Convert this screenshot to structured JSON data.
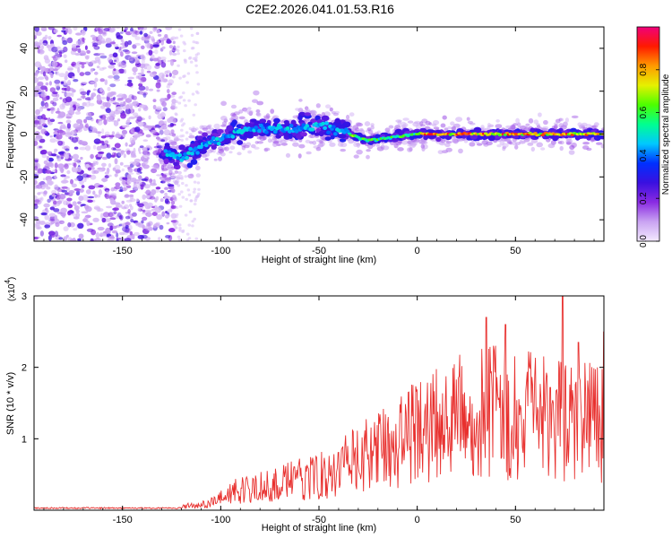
{
  "title": "C2E2.2026.041.01.53.R16",
  "colors": {
    "snr_line": "#e8302e",
    "colormap": [
      "#f4eaff",
      "#c9a3f2",
      "#8a2be2",
      "#3a10e0",
      "#0030ff",
      "#00c8ff",
      "#00ff90",
      "#4cff00",
      "#e6f000",
      "#ff9a00",
      "#ff1a00",
      "#f0007a"
    ]
  },
  "chart_data": [
    {
      "type": "heatmap",
      "name": "spectrogram",
      "xlabel": "Height of straight line (km)",
      "ylabel": "Frequency (Hz)",
      "xlim": [
        -195,
        95
      ],
      "ylim": [
        -50,
        50
      ],
      "x_ticks": [
        -150,
        -100,
        -50,
        0,
        50
      ],
      "x_tick_labels": [
        "-150",
        "-100",
        "-50",
        "0",
        "50"
      ],
      "y_ticks": [
        -40,
        -20,
        0,
        20,
        40
      ],
      "y_tick_labels": [
        "-40",
        "-20",
        "0",
        "20",
        "40"
      ],
      "colorbar": {
        "label": "Normalized spectral amplitude",
        "range": [
          0,
          1
        ],
        "ticks": [
          0.0,
          0.2,
          0.4,
          0.6,
          0.8
        ],
        "tick_labels": [
          "0.0",
          "0.2",
          "0.4",
          "0.6",
          "0.8"
        ]
      },
      "track": [
        {
          "x": -130,
          "y": -8
        },
        {
          "x": -122,
          "y": -11
        },
        {
          "x": -115,
          "y": -9
        },
        {
          "x": -108,
          "y": -4
        },
        {
          "x": -100,
          "y": -2
        },
        {
          "x": -92,
          "y": 1
        },
        {
          "x": -84,
          "y": 2
        },
        {
          "x": -76,
          "y": 3
        },
        {
          "x": -68,
          "y": 2
        },
        {
          "x": -60,
          "y": 3
        },
        {
          "x": -52,
          "y": 4
        },
        {
          "x": -44,
          "y": 3
        },
        {
          "x": -36,
          "y": 1
        },
        {
          "x": -30,
          "y": -2
        },
        {
          "x": -24,
          "y": -3
        },
        {
          "x": -18,
          "y": -2
        },
        {
          "x": -10,
          "y": -1
        },
        {
          "x": 0,
          "y": 0
        },
        {
          "x": 20,
          "y": 0
        },
        {
          "x": 50,
          "y": 0
        },
        {
          "x": 95,
          "y": 0
        }
      ]
    },
    {
      "type": "line",
      "name": "snr",
      "xlabel": "Height of straight line (km)",
      "ylabel": "SNR (10 * v/v)",
      "y_multiplier": "(x10",
      "y_multiplier_exp": "4",
      "y_multiplier_close": ")",
      "xlim": [
        -195,
        95
      ],
      "ylim": [
        0,
        3
      ],
      "x_ticks": [
        -150,
        -100,
        -50,
        0,
        50
      ],
      "x_tick_labels": [
        "-150",
        "-100",
        "-50",
        "0",
        "50"
      ],
      "y_ticks": [
        1,
        2,
        3
      ],
      "y_tick_labels": [
        "1",
        "2",
        "3"
      ],
      "envelope": [
        {
          "x": -195,
          "y": 0.04
        },
        {
          "x": -150,
          "y": 0.04
        },
        {
          "x": -120,
          "y": 0.06
        },
        {
          "x": -105,
          "y": 0.12
        },
        {
          "x": -90,
          "y": 0.35
        },
        {
          "x": -70,
          "y": 0.45
        },
        {
          "x": -55,
          "y": 0.55
        },
        {
          "x": -40,
          "y": 0.7
        },
        {
          "x": -30,
          "y": 0.85
        },
        {
          "x": -20,
          "y": 1.0
        },
        {
          "x": -10,
          "y": 1.15
        },
        {
          "x": 0,
          "y": 1.35
        },
        {
          "x": 10,
          "y": 1.45
        },
        {
          "x": 20,
          "y": 1.55
        },
        {
          "x": 30,
          "y": 1.6
        },
        {
          "x": 40,
          "y": 1.65
        },
        {
          "x": 50,
          "y": 1.62
        },
        {
          "x": 60,
          "y": 1.58
        },
        {
          "x": 70,
          "y": 1.55
        },
        {
          "x": 80,
          "y": 1.5
        },
        {
          "x": 95,
          "y": 1.45
        }
      ],
      "peaks": [
        {
          "x": 35,
          "y": 2.7
        },
        {
          "x": 45,
          "y": 2.6
        },
        {
          "x": 74,
          "y": 3.0
        },
        {
          "x": 82,
          "y": 2.35
        },
        {
          "x": 95,
          "y": 2.5
        }
      ]
    }
  ]
}
